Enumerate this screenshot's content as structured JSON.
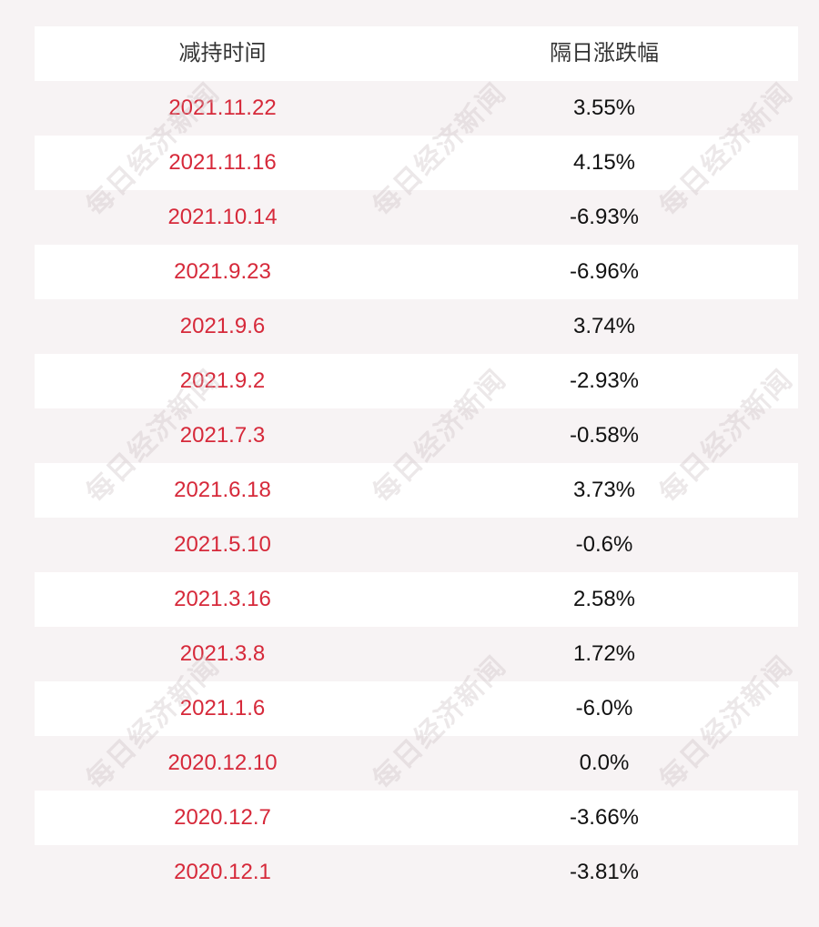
{
  "table": {
    "headers": [
      "减持时间",
      "隔日涨跌幅"
    ],
    "rows": [
      [
        "2021.11.22",
        "3.55%"
      ],
      [
        "2021.11.16",
        "4.15%"
      ],
      [
        "2021.10.14",
        "-6.93%"
      ],
      [
        "2021.9.23",
        "-6.96%"
      ],
      [
        "2021.9.6",
        "3.74%"
      ],
      [
        "2021.9.2",
        "-2.93%"
      ],
      [
        "2021.7.3",
        "-0.58%"
      ],
      [
        "2021.6.18",
        "3.73%"
      ],
      [
        "2021.5.10",
        "-0.6%"
      ],
      [
        "2021.3.16",
        "2.58%"
      ],
      [
        "2021.3.8",
        "1.72%"
      ],
      [
        "2021.1.6",
        "-6.0%"
      ],
      [
        "2020.12.10",
        "0.0%"
      ],
      [
        "2020.12.7",
        "-3.66%"
      ],
      [
        "2020.12.1",
        "-3.81%"
      ]
    ]
  },
  "watermark": "每日经济新闻",
  "colors": {
    "date_text": "#d6293a",
    "value_text": "#111111",
    "header_text": "#333333",
    "row_white": "#ffffff",
    "row_tinted": "#f7f3f4"
  }
}
